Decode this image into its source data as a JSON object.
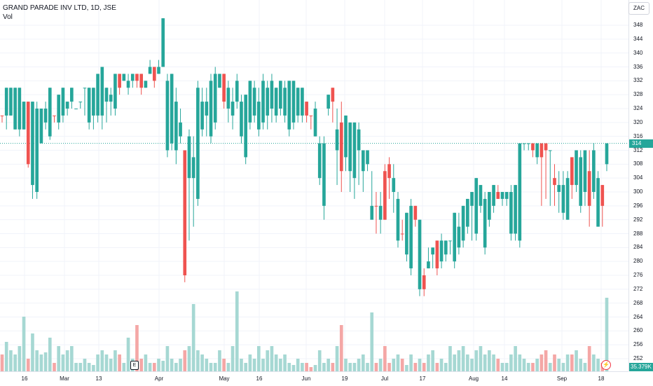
{
  "legend": {
    "symbol": "GRAND PARADE INV LTD, 1D, JSE",
    "volume_label": "Vol"
  },
  "currency": "ZAC",
  "last_price": "314",
  "last_volume": "35.379K",
  "event_marker": "E",
  "alert_icon": "lightning-bolt-icon",
  "colors": {
    "up": "#26a69a",
    "down": "#ef5350",
    "up_vol": "#a6d8d3",
    "down_vol": "#f4a7a6",
    "grid": "#f0f3fa"
  },
  "chart_data": {
    "type": "candlestick",
    "ylim": [
      250,
      350
    ],
    "price_ticks": [
      252,
      256,
      260,
      264,
      268,
      272,
      276,
      280,
      284,
      288,
      292,
      296,
      300,
      304,
      308,
      312,
      316,
      320,
      324,
      328,
      332,
      336,
      340,
      344,
      348
    ],
    "time_ticks": [
      "16",
      "Mar",
      "13",
      "Apr",
      "May",
      "16",
      "Jun",
      "19",
      "Jul",
      "17",
      "Aug",
      "14",
      "Sep",
      "18"
    ],
    "candles": [
      [
        322,
        322,
        322,
        320,
        "down",
        8
      ],
      [
        330,
        322,
        330,
        318,
        "up",
        14
      ],
      [
        322,
        330,
        330,
        322,
        "up",
        10
      ],
      [
        318,
        330,
        330,
        318,
        "up",
        8
      ],
      [
        318,
        330,
        330,
        316,
        "up",
        12
      ],
      [
        318,
        326,
        326,
        318,
        "up",
        26
      ],
      [
        326,
        308,
        326,
        307,
        "down",
        6
      ],
      [
        302,
        326,
        326,
        298,
        "up",
        18
      ],
      [
        300,
        324,
        326,
        298,
        "up",
        10
      ],
      [
        314,
        324,
        324,
        314,
        "up",
        8
      ],
      [
        320,
        324,
        326,
        318,
        "up",
        9
      ],
      [
        316,
        330,
        330,
        315,
        "up",
        16
      ],
      [
        322,
        322,
        322,
        320,
        "down",
        4
      ],
      [
        320,
        328,
        328,
        318,
        "up",
        12
      ],
      [
        322,
        330,
        330,
        320,
        "up",
        8
      ],
      [
        326,
        324,
        326,
        322,
        "up",
        10
      ],
      [
        326,
        330,
        330,
        324,
        "up",
        12
      ],
      [
        324,
        324,
        324,
        324,
        "up",
        4
      ],
      [
        326,
        326,
        326,
        324,
        "up",
        4
      ],
      [
        330,
        330,
        330,
        322,
        "up",
        6
      ],
      [
        320,
        330,
        330,
        318,
        "up",
        4
      ],
      [
        322,
        330,
        330,
        318,
        "up",
        3
      ],
      [
        322,
        334,
        334,
        320,
        "up",
        8
      ],
      [
        322,
        336,
        336,
        318,
        "up",
        10
      ],
      [
        326,
        330,
        330,
        320,
        "up",
        8
      ],
      [
        326,
        328,
        330,
        322,
        "up",
        6
      ],
      [
        324,
        334,
        334,
        322,
        "up",
        10
      ],
      [
        334,
        330,
        334,
        328,
        "down",
        8
      ],
      [
        332,
        334,
        334,
        332,
        "up",
        4
      ],
      [
        330,
        332,
        334,
        328,
        "up",
        16
      ],
      [
        332,
        334,
        334,
        330,
        "up",
        6
      ],
      [
        334,
        332,
        334,
        330,
        "down",
        22
      ],
      [
        334,
        330,
        334,
        328,
        "down",
        6
      ],
      [
        330,
        332,
        332,
        330,
        "up",
        8
      ],
      [
        334,
        336,
        338,
        334,
        "up",
        4
      ],
      [
        336,
        332,
        336,
        330,
        "down",
        4
      ],
      [
        334,
        336,
        338,
        334,
        "up",
        6
      ],
      [
        336,
        350,
        350,
        336,
        "up",
        5
      ],
      [
        312,
        332,
        334,
        310,
        "up",
        12
      ],
      [
        314,
        334,
        334,
        312,
        "up",
        6
      ],
      [
        312,
        326,
        330,
        308,
        "up",
        4
      ],
      [
        316,
        320,
        324,
        314,
        "up",
        6
      ],
      [
        312,
        276,
        312,
        274,
        "down",
        10
      ],
      [
        304,
        316,
        318,
        286,
        "up",
        12
      ],
      [
        304,
        310,
        316,
        290,
        "up",
        32
      ],
      [
        298,
        330,
        332,
        296,
        "up",
        10
      ],
      [
        318,
        326,
        330,
        316,
        "up",
        8
      ],
      [
        322,
        326,
        330,
        316,
        "up",
        6
      ],
      [
        316,
        332,
        334,
        314,
        "up",
        4
      ],
      [
        320,
        334,
        336,
        318,
        "up",
        4
      ],
      [
        330,
        334,
        334,
        330,
        "up",
        10
      ],
      [
        334,
        326,
        334,
        324,
        "down",
        6
      ],
      [
        324,
        330,
        332,
        320,
        "up",
        4
      ],
      [
        322,
        326,
        330,
        318,
        "up",
        12
      ],
      [
        326,
        332,
        334,
        324,
        "up",
        38
      ],
      [
        316,
        326,
        328,
        314,
        "up",
        6
      ],
      [
        310,
        328,
        328,
        308,
        "up",
        4
      ],
      [
        320,
        332,
        332,
        318,
        "up",
        8
      ],
      [
        322,
        330,
        332,
        320,
        "up",
        6
      ],
      [
        318,
        326,
        330,
        316,
        "up",
        12
      ],
      [
        320,
        332,
        334,
        318,
        "up",
        6
      ],
      [
        322,
        330,
        332,
        318,
        "up",
        10
      ],
      [
        324,
        332,
        334,
        320,
        "up",
        12
      ],
      [
        322,
        330,
        330,
        320,
        "up",
        8
      ],
      [
        324,
        332,
        332,
        322,
        "up",
        6
      ],
      [
        322,
        330,
        332,
        320,
        "up",
        8
      ],
      [
        318,
        332,
        332,
        316,
        "up",
        4
      ],
      [
        320,
        332,
        332,
        318,
        "up",
        3
      ],
      [
        322,
        330,
        330,
        320,
        "up",
        6
      ],
      [
        322,
        330,
        330,
        320,
        "up",
        4
      ],
      [
        326,
        322,
        326,
        320,
        "down",
        4
      ],
      [
        322,
        322,
        322,
        318,
        "down",
        2
      ],
      [
        316,
        324,
        326,
        316,
        "up",
        3
      ],
      [
        304,
        314,
        316,
        302,
        "up",
        10
      ],
      [
        296,
        314,
        316,
        292,
        "up",
        4
      ],
      [
        324,
        328,
        328,
        322,
        "up",
        6
      ],
      [
        330,
        326,
        330,
        320,
        "down",
        4
      ],
      [
        312,
        318,
        324,
        302,
        "up",
        12
      ],
      [
        320,
        306,
        326,
        300,
        "down",
        22
      ],
      [
        310,
        322,
        322,
        306,
        "up",
        6
      ],
      [
        306,
        320,
        320,
        300,
        "up",
        4
      ],
      [
        304,
        320,
        320,
        298,
        "up",
        4
      ],
      [
        312,
        318,
        320,
        302,
        "up",
        6
      ],
      [
        306,
        312,
        312,
        300,
        "up",
        8
      ],
      [
        308,
        312,
        312,
        306,
        "up",
        4
      ],
      [
        292,
        296,
        306,
        294,
        "up",
        28
      ],
      [
        296,
        296,
        300,
        288,
        "down",
        4
      ],
      [
        292,
        296,
        300,
        288,
        "up",
        6
      ],
      [
        292,
        306,
        308,
        292,
        "down",
        12
      ],
      [
        304,
        308,
        310,
        298,
        "down",
        4
      ],
      [
        300,
        304,
        308,
        294,
        "up",
        6
      ],
      [
        286,
        298,
        300,
        284,
        "up",
        8
      ],
      [
        288,
        288,
        292,
        286,
        "down",
        6
      ],
      [
        282,
        294,
        294,
        280,
        "up",
        3
      ],
      [
        278,
        296,
        298,
        276,
        "up",
        8
      ],
      [
        292,
        296,
        296,
        290,
        "down",
        4
      ],
      [
        272,
        292,
        292,
        270,
        "up",
        6
      ],
      [
        272,
        276,
        278,
        270,
        "down",
        4
      ],
      [
        280,
        278,
        284,
        278,
        "up",
        8
      ],
      [
        282,
        284,
        284,
        278,
        "up",
        10
      ],
      [
        278,
        286,
        286,
        276,
        "down",
        4
      ],
      [
        280,
        286,
        288,
        278,
        "up",
        6
      ],
      [
        282,
        286,
        286,
        280,
        "up",
        4
      ],
      [
        286,
        286,
        286,
        282,
        "up",
        12
      ],
      [
        280,
        294,
        294,
        278,
        "up",
        8
      ],
      [
        284,
        290,
        294,
        282,
        "up",
        10
      ],
      [
        286,
        296,
        296,
        284,
        "up",
        12
      ],
      [
        290,
        298,
        298,
        288,
        "up",
        8
      ],
      [
        296,
        300,
        300,
        286,
        "up",
        6
      ],
      [
        288,
        304,
        304,
        286,
        "up",
        10
      ],
      [
        296,
        302,
        302,
        294,
        "up",
        12
      ],
      [
        284,
        298,
        300,
        282,
        "up",
        8
      ],
      [
        292,
        300,
        300,
        290,
        "up",
        10
      ],
      [
        296,
        302,
        302,
        294,
        "up",
        8
      ],
      [
        300,
        298,
        302,
        298,
        "down",
        6
      ],
      [
        298,
        300,
        300,
        296,
        "up",
        4
      ],
      [
        298,
        300,
        300,
        296,
        "up",
        4
      ],
      [
        288,
        300,
        302,
        286,
        "up",
        8
      ],
      [
        288,
        302,
        302,
        286,
        "up",
        12
      ],
      [
        286,
        314,
        314,
        284,
        "up",
        8
      ],
      [
        314,
        314,
        314,
        312,
        "up",
        6
      ],
      [
        314,
        314,
        314,
        312,
        "up",
        4
      ],
      [
        314,
        312,
        314,
        310,
        "down",
        4
      ],
      [
        310,
        314,
        314,
        308,
        "up",
        6
      ],
      [
        314,
        310,
        314,
        296,
        "down",
        8
      ],
      [
        314,
        312,
        314,
        298,
        "down",
        10
      ],
      [
        312,
        312,
        312,
        296,
        "up",
        4
      ],
      [
        302,
        304,
        308,
        296,
        "down",
        8
      ],
      [
        300,
        302,
        306,
        294,
        "up",
        6
      ],
      [
        294,
        302,
        306,
        292,
        "up",
        4
      ],
      [
        292,
        304,
        306,
        292,
        "up",
        8
      ],
      [
        310,
        302,
        310,
        298,
        "down",
        8
      ],
      [
        302,
        312,
        312,
        300,
        "up",
        10
      ],
      [
        296,
        310,
        312,
        294,
        "up",
        6
      ],
      [
        300,
        312,
        312,
        296,
        "up",
        4
      ],
      [
        306,
        296,
        312,
        290,
        "down",
        12
      ],
      [
        300,
        312,
        314,
        298,
        "up",
        8
      ],
      [
        290,
        304,
        306,
        290,
        "up",
        6
      ],
      [
        302,
        296,
        302,
        290,
        "down",
        4
      ],
      [
        308,
        314,
        314,
        306,
        "up",
        35
      ]
    ]
  }
}
